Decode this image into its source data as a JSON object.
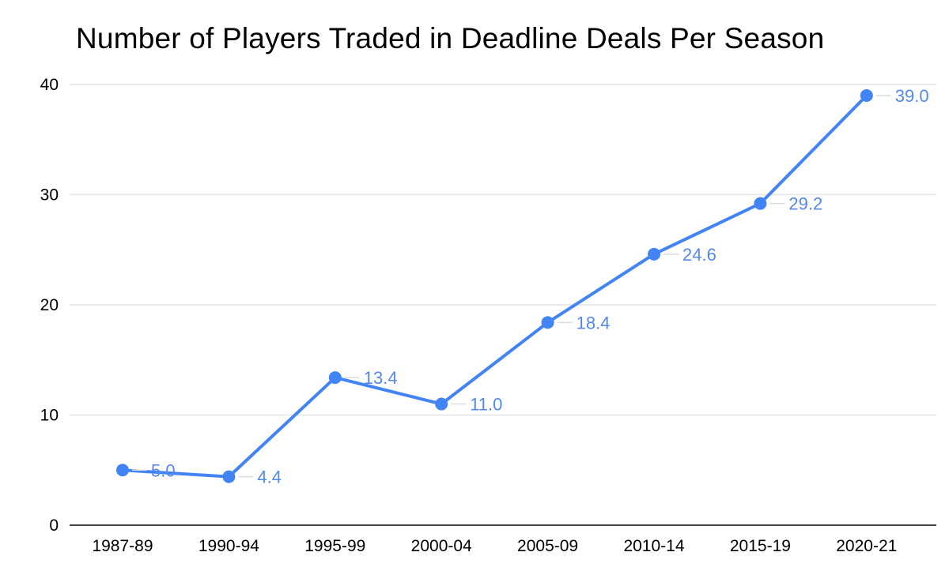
{
  "chart_data": {
    "type": "line",
    "title": "Number of Players Traded in Deadline Deals Per Season",
    "categories": [
      "1987-89",
      "1990-94",
      "1995-99",
      "2000-04",
      "2005-09",
      "2010-14",
      "2015-19",
      "2020-21"
    ],
    "values": [
      5.0,
      4.4,
      13.4,
      11.0,
      18.4,
      24.6,
      29.2,
      39.0
    ],
    "data_labels": [
      "5.0",
      "4.4",
      "13.4",
      "11.0",
      "18.4",
      "24.6",
      "29.2",
      "39.0"
    ],
    "xlabel": "",
    "ylabel": "",
    "ylim": [
      0,
      40
    ],
    "yticks": [
      0,
      10,
      20,
      30,
      40
    ],
    "grid": "horizontal",
    "legend": "none",
    "colors": {
      "line": "#4384f4",
      "point": "#4384f4",
      "data_label": "#5588ee",
      "grid": "#e3e3e3",
      "axis": "#424242",
      "leader": "#dcdcdc",
      "tick_text": "#000000",
      "background": "#ffffff"
    }
  }
}
